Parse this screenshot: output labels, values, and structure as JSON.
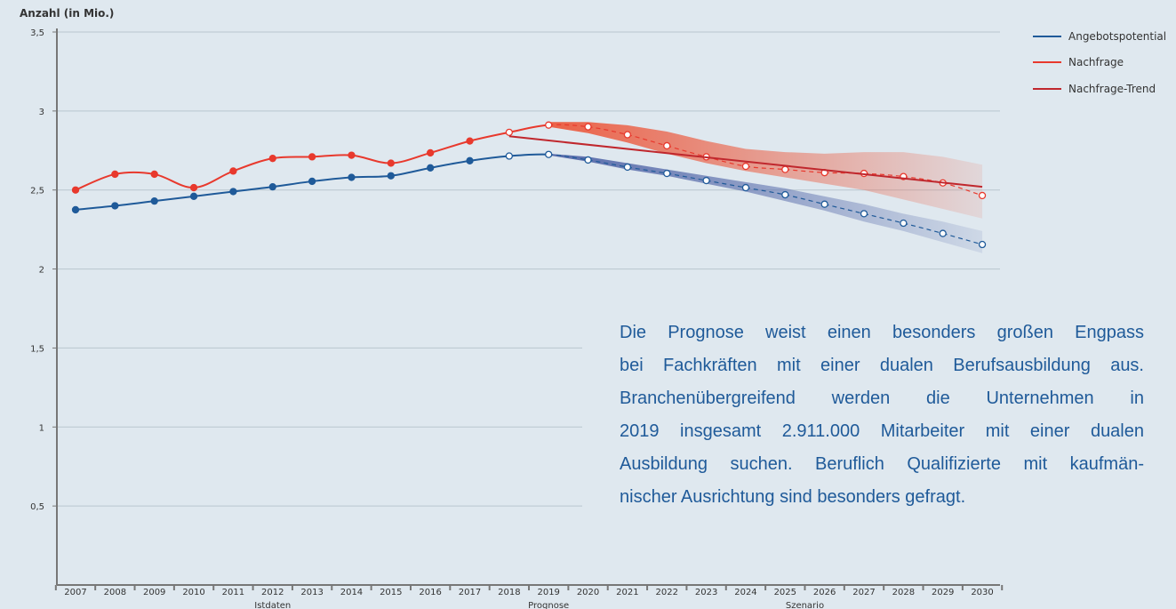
{
  "chart_data": {
    "type": "line",
    "title": "Anzahl (in Mio.)",
    "x": [
      2007,
      2008,
      2009,
      2010,
      2011,
      2012,
      2013,
      2014,
      2015,
      2016,
      2017,
      2018,
      2019,
      2020,
      2021,
      2022,
      2023,
      2024,
      2025,
      2026,
      2027,
      2028,
      2029,
      2030
    ],
    "ylim": [
      0,
      3.5
    ],
    "yticks": [
      {
        "value": 0.5,
        "label": "0,5"
      },
      1,
      {
        "value": 1.5,
        "label": "1,5"
      },
      2,
      {
        "value": 2.5,
        "label": "2,5"
      },
      3,
      {
        "value": 3.5,
        "label": "3,5"
      }
    ],
    "grid": true,
    "legend": "top-right",
    "open_markers_from_index": 11,
    "dashed_from_index": 12,
    "groups": [
      {
        "label": "Istdaten",
        "from": 0,
        "to": 10
      },
      {
        "label": "Prognose",
        "from": 11,
        "to": 13
      },
      {
        "label": "Szenario",
        "from": 14,
        "to": 23
      }
    ],
    "series": [
      {
        "name": "Angebotspotential",
        "color": "#1f5a99",
        "band_color": "#4f63a6",
        "values": [
          2.375,
          2.4,
          2.43,
          2.46,
          2.49,
          2.52,
          2.555,
          2.58,
          2.59,
          2.64,
          2.685,
          2.715,
          2.725,
          2.69,
          2.645,
          2.605,
          2.56,
          2.515,
          2.47,
          2.41,
          2.35,
          2.29,
          2.225,
          2.155
        ],
        "band_low": [
          null,
          null,
          null,
          null,
          null,
          null,
          null,
          null,
          null,
          null,
          null,
          null,
          2.72,
          2.68,
          2.63,
          2.59,
          2.54,
          2.49,
          2.43,
          2.37,
          2.3,
          2.24,
          2.17,
          2.1
        ],
        "band_high": [
          null,
          null,
          null,
          null,
          null,
          null,
          null,
          null,
          null,
          null,
          null,
          null,
          2.73,
          2.71,
          2.67,
          2.63,
          2.59,
          2.55,
          2.51,
          2.46,
          2.41,
          2.35,
          2.3,
          2.24
        ]
      },
      {
        "name": "Nachfrage",
        "color": "#e8392d",
        "band_color": "#ec5a3e",
        "values": [
          2.5,
          2.6,
          2.6,
          2.515,
          2.62,
          2.7,
          2.71,
          2.72,
          2.67,
          2.735,
          2.81,
          2.865,
          2.911,
          2.9,
          2.85,
          2.78,
          2.71,
          2.65,
          2.63,
          2.61,
          2.605,
          2.585,
          2.545,
          2.465
        ],
        "band_low": [
          null,
          null,
          null,
          null,
          null,
          null,
          null,
          null,
          null,
          null,
          null,
          null,
          2.9,
          2.86,
          2.8,
          2.73,
          2.67,
          2.62,
          2.58,
          2.54,
          2.5,
          2.44,
          2.38,
          2.32
        ],
        "band_high": [
          null,
          null,
          null,
          null,
          null,
          null,
          null,
          null,
          null,
          null,
          null,
          null,
          2.93,
          2.93,
          2.91,
          2.87,
          2.81,
          2.76,
          2.74,
          2.73,
          2.74,
          2.74,
          2.71,
          2.66
        ]
      },
      {
        "name": "Nachfrage-Trend",
        "color": "#c0272d",
        "x": [
          2018,
          2030
        ],
        "values": [
          2.84,
          2.52
        ]
      }
    ],
    "annotation": [
      "Die Prognose weist einen besonders großen Engpass",
      "bei Fachkräften mit einer dualen Berufsausbildung aus.",
      "Branchenübergreifend werden die Unternehmen in",
      "2019 insgesamt 2.911.000 Mitarbeiter mit einer dualen",
      "Ausbildung suchen. Beruflich Qualifizierte mit kaufmän-",
      "nischer Ausrichtung sind besonders gefragt."
    ]
  }
}
